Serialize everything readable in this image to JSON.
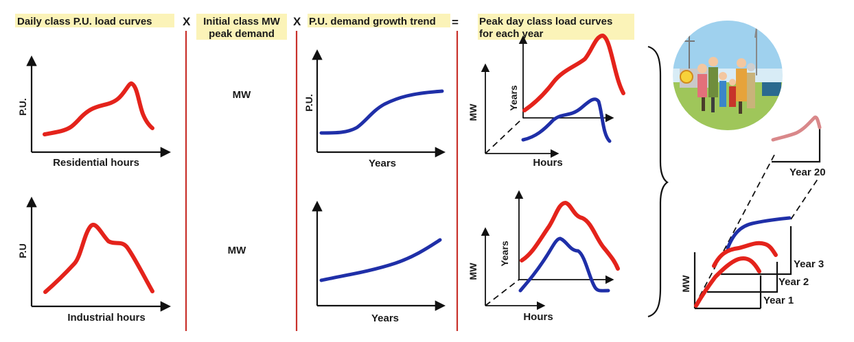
{
  "headers": {
    "col1": "Daily class P.U. load curves",
    "op1": "X",
    "col2_line1": "Initial class MW",
    "col2_line2": "peak demand",
    "op2": "X",
    "col3": "P.U. demand growth trend",
    "op3": "=",
    "col4_line1": "Peak day class load curves",
    "col4_line2": "for each year"
  },
  "residential": {
    "y_label": "P.U.",
    "x_label": "Residential hours"
  },
  "industrial": {
    "y_label": "P.U",
    "x_label": "Industrial hours"
  },
  "mw_values": {
    "top": "MW",
    "bottom": "MW"
  },
  "growth_top": {
    "y_label": "P.U.",
    "x_label": "Years"
  },
  "growth_bottom": {
    "x_label": "Years"
  },
  "peak_top": {
    "y_label": "MW",
    "depth_label": "Years",
    "x_label": "Hours"
  },
  "peak_bottom": {
    "y_label": "MW",
    "depth_label": "Years",
    "x_label": "Hours"
  },
  "stack": {
    "y_label": "MW",
    "years": [
      "Year 20",
      "Year 3",
      "Year 2",
      "Year 1"
    ]
  },
  "colors": {
    "residential_curve": "#e4231b",
    "industrial_curve": "#1f2fa8",
    "separator": "#c8302a"
  },
  "illustration": {
    "name": "family-power-plant-illustration"
  }
}
